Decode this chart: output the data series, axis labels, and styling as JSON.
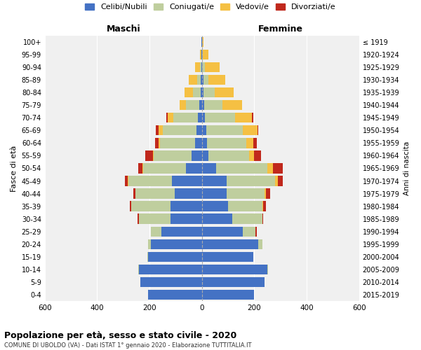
{
  "age_groups_bottom_to_top": [
    "0-4",
    "5-9",
    "10-14",
    "15-19",
    "20-24",
    "25-29",
    "30-34",
    "35-39",
    "40-44",
    "45-49",
    "50-54",
    "55-59",
    "60-64",
    "65-69",
    "70-74",
    "75-79",
    "80-84",
    "85-89",
    "90-94",
    "95-99",
    "100+"
  ],
  "birth_years_bottom_to_top": [
    "2015-2019",
    "2010-2014",
    "2005-2009",
    "2000-2004",
    "1995-1999",
    "1990-1994",
    "1985-1989",
    "1980-1984",
    "1975-1979",
    "1970-1974",
    "1965-1969",
    "1960-1964",
    "1955-1959",
    "1950-1954",
    "1945-1949",
    "1940-1944",
    "1935-1939",
    "1930-1934",
    "1925-1929",
    "1920-1924",
    "≤ 1919"
  ],
  "colors": {
    "celibi": "#4472C4",
    "coniugati": "#BFCE9E",
    "vedovi": "#F5C043",
    "divorziati": "#C0281C"
  },
  "males": {
    "celibi": [
      205,
      235,
      240,
      205,
      195,
      155,
      120,
      120,
      105,
      115,
      60,
      40,
      25,
      20,
      15,
      10,
      5,
      4,
      2,
      1,
      1
    ],
    "coniugati": [
      0,
      0,
      2,
      2,
      10,
      40,
      120,
      150,
      150,
      165,
      165,
      145,
      135,
      130,
      95,
      50,
      30,
      15,
      5,
      1,
      0
    ],
    "vedovi": [
      0,
      0,
      0,
      0,
      0,
      0,
      0,
      0,
      0,
      2,
      2,
      2,
      5,
      15,
      20,
      25,
      30,
      30,
      20,
      5,
      2
    ],
    "divorziati": [
      0,
      0,
      0,
      0,
      0,
      0,
      5,
      5,
      8,
      12,
      15,
      30,
      15,
      10,
      5,
      0,
      0,
      0,
      0,
      0,
      0
    ]
  },
  "females": {
    "celibi": [
      200,
      240,
      250,
      195,
      215,
      155,
      115,
      100,
      95,
      95,
      55,
      25,
      20,
      16,
      12,
      8,
      5,
      5,
      2,
      1,
      1
    ],
    "coniugati": [
      0,
      0,
      2,
      2,
      15,
      50,
      115,
      130,
      145,
      185,
      195,
      155,
      150,
      140,
      115,
      70,
      45,
      20,
      10,
      3,
      0
    ],
    "vedovi": [
      0,
      0,
      0,
      0,
      0,
      0,
      0,
      5,
      5,
      10,
      20,
      20,
      25,
      55,
      65,
      75,
      70,
      65,
      55,
      20,
      5
    ],
    "divorziati": [
      0,
      0,
      0,
      0,
      0,
      5,
      5,
      10,
      15,
      20,
      40,
      25,
      15,
      5,
      5,
      0,
      0,
      0,
      0,
      0,
      0
    ]
  },
  "title": "Popolazione per età, sesso e stato civile - 2020",
  "subtitle": "COMUNE DI UBOLDO (VA) - Dati ISTAT 1° gennaio 2020 - Elaborazione TUTTITALIA.IT",
  "ylabel_left": "Fasce di età",
  "ylabel_right": "Anni di nascita",
  "xlim": 600,
  "legend_labels": [
    "Celibi/Nubili",
    "Coniugati/e",
    "Vedovi/e",
    "Divorziati/e"
  ],
  "maschi_label": "Maschi",
  "femmine_label": "Femmine",
  "bg_color": "#FFFFFF",
  "plot_bg_color": "#F0F0F0"
}
